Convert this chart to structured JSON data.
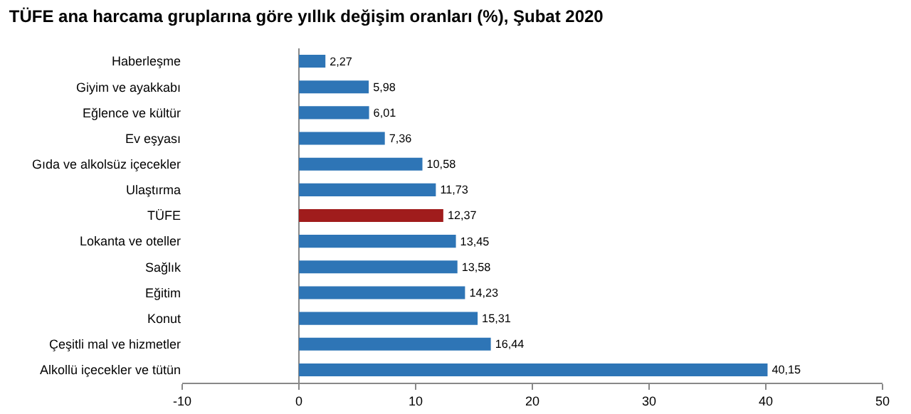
{
  "chart_data": {
    "type": "bar",
    "orientation": "horizontal",
    "title": "TÜFE ana harcama gruplarına göre yıllık değişim oranları (%), Şubat 2020",
    "categories": [
      "Haberleşme",
      "Giyim ve ayakkabı",
      "Eğlence ve kültür",
      "Ev eşyası",
      "Gıda ve alkolsüz içecekler",
      "Ulaştırma",
      "TÜFE",
      "Lokanta ve oteller",
      "Sağlık",
      "Eğitim",
      "Konut",
      "Çeşitli mal ve hizmetler",
      "Alkollü içecekler ve tütün"
    ],
    "values": [
      2.27,
      5.98,
      6.01,
      7.36,
      10.58,
      11.73,
      12.37,
      13.45,
      13.58,
      14.23,
      15.31,
      16.44,
      40.15
    ],
    "value_labels": [
      "2,27",
      "5,98",
      "6,01",
      "7,36",
      "10,58",
      "11,73",
      "12,37",
      "13,45",
      "13,58",
      "14,23",
      "15,31",
      "16,44",
      "40,15"
    ],
    "colors": [
      "#2e75b6",
      "#2e75b6",
      "#2e75b6",
      "#2e75b6",
      "#2e75b6",
      "#2e75b6",
      "#a01c1c",
      "#2e75b6",
      "#2e75b6",
      "#2e75b6",
      "#2e75b6",
      "#2e75b6",
      "#2e75b6"
    ],
    "xlim": [
      -10,
      50
    ],
    "xticks": [
      -10,
      0,
      10,
      20,
      30,
      40,
      50
    ]
  }
}
